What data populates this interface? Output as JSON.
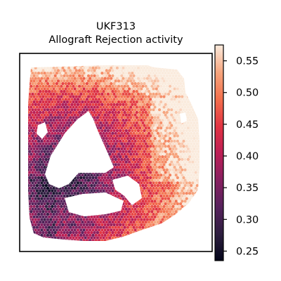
{
  "chart_data": {
    "type": "heatmap",
    "title": "UKF313",
    "subtitle": "Allograft Rejection activity",
    "xlabel": "",
    "ylabel": "",
    "colormap": "rocket",
    "colorbar": {
      "min": 0.235,
      "max": 0.575,
      "ticks": [
        "0.25",
        "0.30",
        "0.35",
        "0.40",
        "0.45",
        "0.50",
        "0.55"
      ],
      "tick_values": [
        0.25,
        0.3,
        0.35,
        0.4,
        0.45,
        0.5,
        0.55
      ]
    },
    "regions": [
      {
        "name": "upper outer band",
        "approx_value": 0.52
      },
      {
        "name": "right rim",
        "approx_value": 0.48
      },
      {
        "name": "middle band",
        "approx_value": 0.4
      },
      {
        "name": "left and lower inner tissue",
        "approx_value": 0.31
      }
    ],
    "grid": false,
    "legend": "colorbar-right"
  }
}
